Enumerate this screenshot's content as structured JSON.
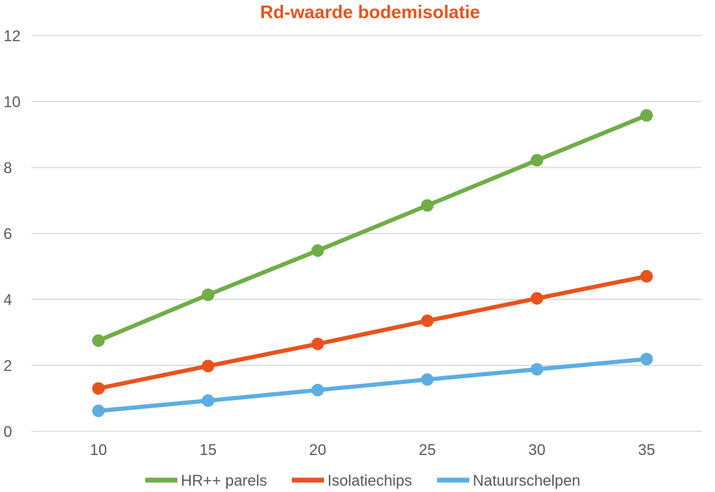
{
  "chart_data": {
    "type": "line",
    "title": "Rd-waarde bodemisolatie",
    "title_color": "#E8531D",
    "xlabel": "",
    "ylabel": "",
    "x": [
      10,
      15,
      20,
      25,
      30,
      35
    ],
    "x_tick_labels": [
      "10",
      "15",
      "20",
      "25",
      "30",
      "35"
    ],
    "y_tick_labels": [
      "0",
      "2",
      "4",
      "6",
      "8",
      "10",
      "12"
    ],
    "ylim": [
      0,
      12
    ],
    "grid": true,
    "legend_position": "bottom",
    "series": [
      {
        "name": "HR++ parels",
        "color": "#70AD47",
        "values": [
          2.75,
          4.14,
          5.48,
          6.85,
          8.22,
          9.58
        ]
      },
      {
        "name": "Isolatiechips",
        "color": "#E8531D",
        "values": [
          1.3,
          1.98,
          2.65,
          3.35,
          4.03,
          4.7
        ]
      },
      {
        "name": "Natuurschelpen",
        "color": "#5DADE2",
        "values": [
          0.62,
          0.93,
          1.25,
          1.57,
          1.88,
          2.19
        ]
      }
    ]
  }
}
